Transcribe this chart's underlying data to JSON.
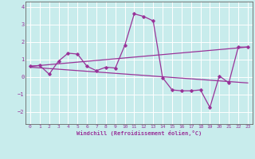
{
  "xlabel": "Windchill (Refroidissement éolien,°C)",
  "bg_color": "#c8ecec",
  "line_color": "#993399",
  "grid_color": "#aadddd",
  "spine_color": "#666666",
  "xlim": [
    -0.5,
    23.5
  ],
  "ylim": [
    -2.7,
    4.3
  ],
  "xticks": [
    0,
    1,
    2,
    3,
    4,
    5,
    6,
    7,
    8,
    9,
    10,
    11,
    12,
    13,
    14,
    15,
    16,
    17,
    18,
    19,
    20,
    21,
    22,
    23
  ],
  "yticks": [
    -2,
    -1,
    0,
    1,
    2,
    3,
    4
  ],
  "line1_x": [
    0,
    1,
    2,
    3,
    4,
    5,
    6,
    7,
    8,
    9,
    10,
    11,
    12,
    13,
    14,
    15,
    16,
    17,
    18,
    19,
    20,
    21,
    22,
    23
  ],
  "line1_y": [
    0.6,
    0.65,
    0.15,
    0.9,
    1.35,
    1.3,
    0.6,
    0.35,
    0.55,
    0.5,
    1.8,
    3.6,
    3.45,
    3.2,
    -0.05,
    -0.75,
    -0.8,
    -0.8,
    -0.75,
    -1.75,
    0.05,
    -0.35,
    1.7,
    1.7
  ],
  "line2_x": [
    0,
    23
  ],
  "line2_y": [
    0.6,
    1.7
  ],
  "line3_x": [
    0,
    23
  ],
  "line3_y": [
    0.55,
    -0.35
  ]
}
